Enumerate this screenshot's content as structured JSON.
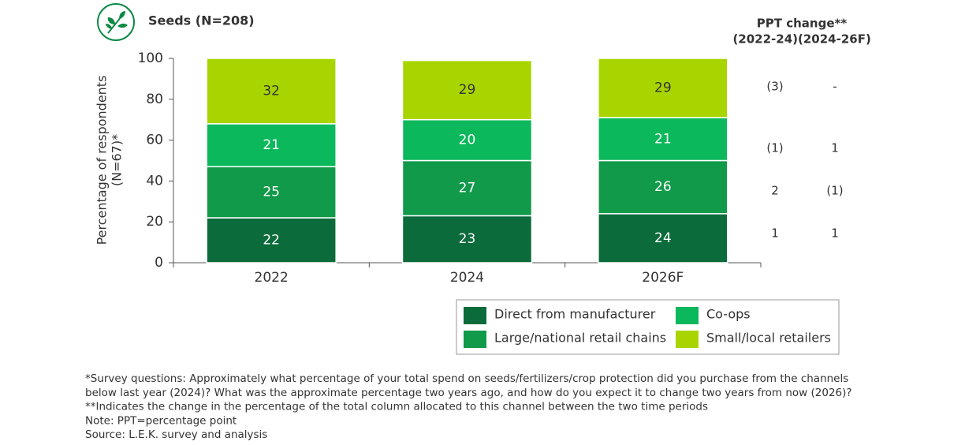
{
  "chart_data": {
    "type": "stacked_bar",
    "title": "Seeds (N=208)",
    "y_label": [
      "Percentage of respondents",
      "(N=67)*"
    ],
    "categories": [
      "2022",
      "2024",
      "2026F"
    ],
    "series": [
      {
        "name": "Direct from manufacturer",
        "color": "#0b6b3a",
        "values": [
          22,
          23,
          24
        ]
      },
      {
        "name": "Large/national retail chains",
        "color": "#109a4a",
        "values": [
          25,
          27,
          26
        ]
      },
      {
        "name": "Co-ops",
        "color": "#0cb85c",
        "values": [
          21,
          20,
          21
        ]
      },
      {
        "name": "Small/local retailers",
        "color": "#a8d500",
        "values": [
          32,
          29,
          29
        ]
      }
    ],
    "ylim": [
      0,
      100
    ],
    "yticks": [
      0,
      20,
      40,
      60,
      80,
      100
    ]
  },
  "ppt_change": {
    "title": "PPT change**",
    "columns": [
      "(2022-24)",
      "(2024-26F)"
    ],
    "rows": [
      [
        "(3)",
        "-"
      ],
      [
        "(1)",
        "1"
      ],
      [
        "2",
        "(1)"
      ],
      [
        "1",
        "1"
      ]
    ]
  },
  "notes": [
    "*Survey questions: Approximately what percentage of your total spend on seeds/fertilizers/crop protection did you purchase from the channels",
    "below last year (2024)? What was the approximate percentage two years ago, and how do you expect it to change two years from now (2026)?",
    "**Indicates the change in the percentage of the total column allocated to this channel between the two time periods",
    "Note: PPT=percentage point",
    "Source: L.E.K. survey and analysis"
  ]
}
